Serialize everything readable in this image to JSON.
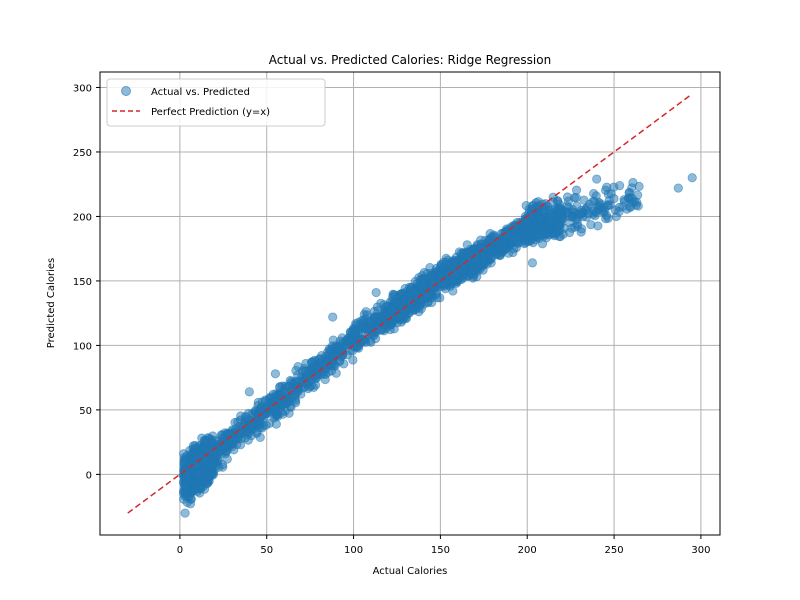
{
  "chart_data": {
    "type": "scatter",
    "title": "Actual vs. Predicted Calories: Ridge Regression",
    "xlabel": "Actual Calories",
    "ylabel": "Predicted Calories",
    "xlim": [
      -46,
      311
    ],
    "ylim": [
      -47,
      312
    ],
    "xticks": [
      0,
      50,
      100,
      150,
      200,
      250,
      300
    ],
    "yticks": [
      0,
      50,
      100,
      150,
      200,
      250,
      300
    ],
    "grid": true,
    "legend_position": "top-left",
    "colors": {
      "points": "#1f77b4",
      "reference": "#d62728",
      "grid": "#b0b0b0"
    },
    "series": [
      {
        "name": "Actual vs. Predicted",
        "kind": "scatter",
        "trend": [
          [
            2,
            -5
          ],
          [
            25,
            22
          ],
          [
            50,
            48
          ],
          [
            75,
            77
          ],
          [
            100,
            105
          ],
          [
            125,
            127
          ],
          [
            150,
            152
          ],
          [
            175,
            170
          ],
          [
            200,
            192
          ],
          [
            225,
            200
          ],
          [
            250,
            212
          ],
          [
            265,
            215
          ]
        ],
        "notable_points": [
          [
            3,
            -30
          ],
          [
            40,
            64
          ],
          [
            55,
            78
          ],
          [
            88,
            122
          ],
          [
            113,
            141
          ],
          [
            203,
            164
          ],
          [
            240,
            229
          ],
          [
            287,
            222
          ],
          [
            295,
            230
          ]
        ]
      },
      {
        "name": "Perfect Prediction (y=x)",
        "kind": "line",
        "style": "dashed",
        "points": [
          [
            -30,
            -30
          ],
          [
            295,
            295
          ]
        ]
      }
    ]
  }
}
